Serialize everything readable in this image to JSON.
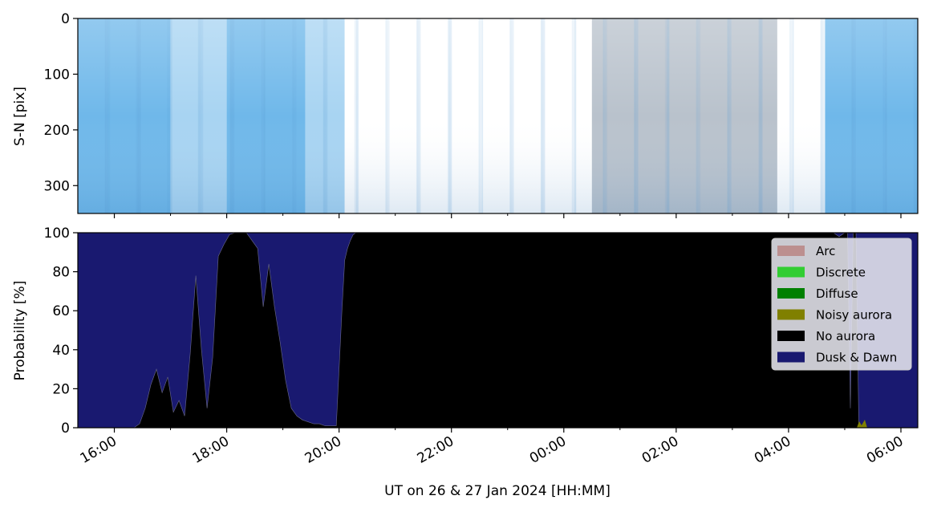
{
  "figure": {
    "xlabel": "UT on 26 & 27 Jan 2024 [HH:MM]"
  },
  "chart_data": [
    {
      "type": "heatmap",
      "title": "",
      "ylabel": "S-N [pix]",
      "ylim": [
        350,
        0
      ],
      "yticks": [
        0,
        100,
        200,
        300
      ],
      "ytick_labels": [
        "0",
        "100",
        "200",
        "300"
      ],
      "x_is_time": true,
      "colors": {
        "white": "#ffffff",
        "light_blue": "#a8d4f2",
        "mid_blue": "#6fb8ea",
        "grey_blue": "#b9c2cc"
      },
      "bands": [
        {
          "start_h": -8.65,
          "end_h": -7.0,
          "tone": "mid_blue"
        },
        {
          "start_h": -7.0,
          "end_h": -6.0,
          "tone": "light_blue"
        },
        {
          "start_h": -6.0,
          "end_h": -4.6,
          "tone": "mid_blue"
        },
        {
          "start_h": -4.6,
          "end_h": -3.9,
          "tone": "light_blue"
        },
        {
          "start_h": -3.9,
          "end_h": 0.5,
          "tone": "white"
        },
        {
          "start_h": 0.5,
          "end_h": 3.8,
          "tone": "grey_blue"
        },
        {
          "start_h": 3.8,
          "end_h": 4.65,
          "tone": "white"
        },
        {
          "start_h": 4.65,
          "end_h": 6.3,
          "tone": "mid_blue"
        }
      ]
    },
    {
      "type": "area",
      "title": "",
      "ylabel": "Probability [%]",
      "ylim": [
        0,
        100
      ],
      "yticks": [
        0,
        20,
        40,
        60,
        80,
        100
      ],
      "ytick_labels": [
        "0",
        "20",
        "40",
        "60",
        "80",
        "100"
      ],
      "xlim_hours_rel_midnight": [
        -8.65,
        6.3
      ],
      "xticks_hours_rel_midnight": [
        -8,
        -6,
        -4,
        -2,
        0,
        2,
        4,
        6
      ],
      "xtick_labels": [
        "16:00",
        "18:00",
        "20:00",
        "22:00",
        "00:00",
        "02:00",
        "04:00",
        "06:00"
      ],
      "minor_xticks_hours_rel_midnight": [
        -7,
        -5,
        -3,
        -1,
        1,
        3,
        5
      ],
      "legend_placement": "upper right",
      "stacking_order": [
        "No aurora",
        "Dusk & Dawn"
      ],
      "series": [
        {
          "name": "Arc",
          "color": "#bc8f8f"
        },
        {
          "name": "Discrete",
          "color": "#32cd32"
        },
        {
          "name": "Diffuse",
          "color": "#008000"
        },
        {
          "name": "Noisy aurora",
          "color": "#808000"
        },
        {
          "name": "No aurora",
          "color": "#000000",
          "x": [
            -8.65,
            -7.65,
            -7.55,
            -7.45,
            -7.35,
            -7.25,
            -7.15,
            -7.05,
            -6.95,
            -6.85,
            -6.75,
            -6.65,
            -6.55,
            -6.45,
            -6.35,
            -6.25,
            -6.15,
            -6.05,
            -5.95,
            -5.85,
            -5.75,
            -5.65,
            -5.55,
            -5.45,
            -5.35,
            -5.25,
            -5.15,
            -5.05,
            -4.95,
            -4.85,
            -4.75,
            -4.65,
            -4.55,
            -4.45,
            -4.35,
            -4.25,
            -4.15,
            -4.05,
            -3.95,
            -3.9,
            -3.85,
            -3.8,
            -3.75,
            -3.7,
            -3.6,
            -3.5,
            -3.4,
            4.8,
            4.9,
            5.0,
            5.05,
            5.1,
            5.15,
            5.2,
            5.25,
            5.3,
            5.35,
            6.3
          ],
          "y": [
            0,
            0,
            2,
            10,
            22,
            30,
            18,
            26,
            8,
            14,
            6,
            38,
            78,
            40,
            10,
            36,
            88,
            94,
            99,
            100,
            100,
            100,
            96,
            92,
            62,
            84,
            62,
            44,
            24,
            10,
            6,
            4,
            3,
            2,
            2,
            1,
            1,
            1,
            60,
            86,
            92,
            96,
            99,
            100,
            100,
            100,
            100,
            100,
            98,
            100,
            100,
            10,
            100,
            100,
            2,
            1,
            0,
            0
          ]
        },
        {
          "name": "Dusk & Dawn",
          "color": "#191970"
        }
      ]
    }
  ]
}
